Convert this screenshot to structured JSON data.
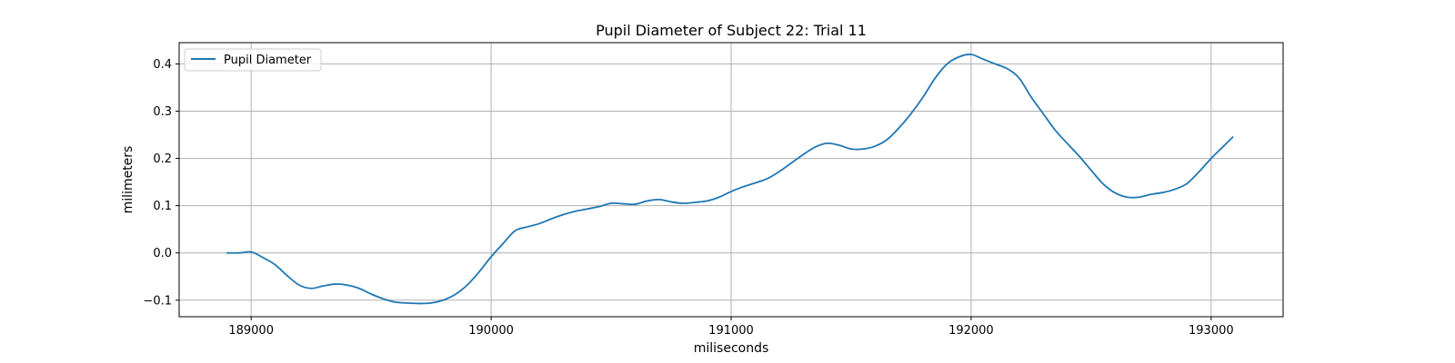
{
  "chart_data": {
    "type": "line",
    "title": "Pupil Diameter of Subject 22: Trial 11",
    "xlabel": "miliseconds",
    "ylabel": "milimeters",
    "xlim": [
      188700,
      193300
    ],
    "ylim": [
      -0.135,
      0.445
    ],
    "xticks": [
      189000,
      190000,
      191000,
      192000,
      193000
    ],
    "yticks": [
      -0.1,
      0.0,
      0.1,
      0.2,
      0.3,
      0.4
    ],
    "xtick_labels": [
      "189000",
      "190000",
      "191000",
      "192000",
      "193000"
    ],
    "ytick_labels": [
      "−0.1",
      "0.0",
      "0.1",
      "0.2",
      "0.3",
      "0.4"
    ],
    "grid": true,
    "legend_position": "upper left",
    "series": [
      {
        "name": "Pupil Diameter",
        "color": "#1f77b4",
        "x": [
          188900,
          188950,
          189000,
          189050,
          189100,
          189150,
          189200,
          189250,
          189300,
          189350,
          189400,
          189450,
          189500,
          189550,
          189600,
          189650,
          189700,
          189750,
          189800,
          189850,
          189900,
          189950,
          190000,
          190050,
          190100,
          190150,
          190200,
          190250,
          190300,
          190350,
          190400,
          190450,
          190500,
          190550,
          190600,
          190650,
          190700,
          190750,
          190800,
          190850,
          190900,
          190950,
          191000,
          191050,
          191100,
          191150,
          191200,
          191250,
          191300,
          191350,
          191400,
          191450,
          191500,
          191550,
          191600,
          191650,
          191700,
          191750,
          191800,
          191850,
          191900,
          191950,
          192000,
          192050,
          192100,
          192150,
          192200,
          192250,
          192300,
          192350,
          192400,
          192450,
          192500,
          192550,
          192600,
          192650,
          192700,
          192750,
          192800,
          192850,
          192900,
          192950,
          193000,
          193050,
          193090
        ],
        "y": [
          0.0,
          0.0,
          0.002,
          -0.01,
          -0.025,
          -0.048,
          -0.068,
          -0.075,
          -0.07,
          -0.066,
          -0.068,
          -0.075,
          -0.087,
          -0.097,
          -0.104,
          -0.106,
          -0.107,
          -0.106,
          -0.1,
          -0.088,
          -0.068,
          -0.04,
          -0.008,
          0.02,
          0.047,
          0.055,
          0.062,
          0.072,
          0.081,
          0.088,
          0.093,
          0.098,
          0.105,
          0.104,
          0.103,
          0.11,
          0.113,
          0.108,
          0.105,
          0.107,
          0.11,
          0.118,
          0.13,
          0.14,
          0.148,
          0.157,
          0.172,
          0.19,
          0.208,
          0.224,
          0.232,
          0.228,
          0.22,
          0.22,
          0.226,
          0.24,
          0.265,
          0.295,
          0.33,
          0.37,
          0.4,
          0.415,
          0.42,
          0.41,
          0.4,
          0.39,
          0.37,
          0.33,
          0.295,
          0.26,
          0.232,
          0.205,
          0.175,
          0.146,
          0.127,
          0.118,
          0.118,
          0.124,
          0.128,
          0.135,
          0.147,
          0.172,
          0.2,
          0.225,
          0.245
        ]
      }
    ]
  }
}
